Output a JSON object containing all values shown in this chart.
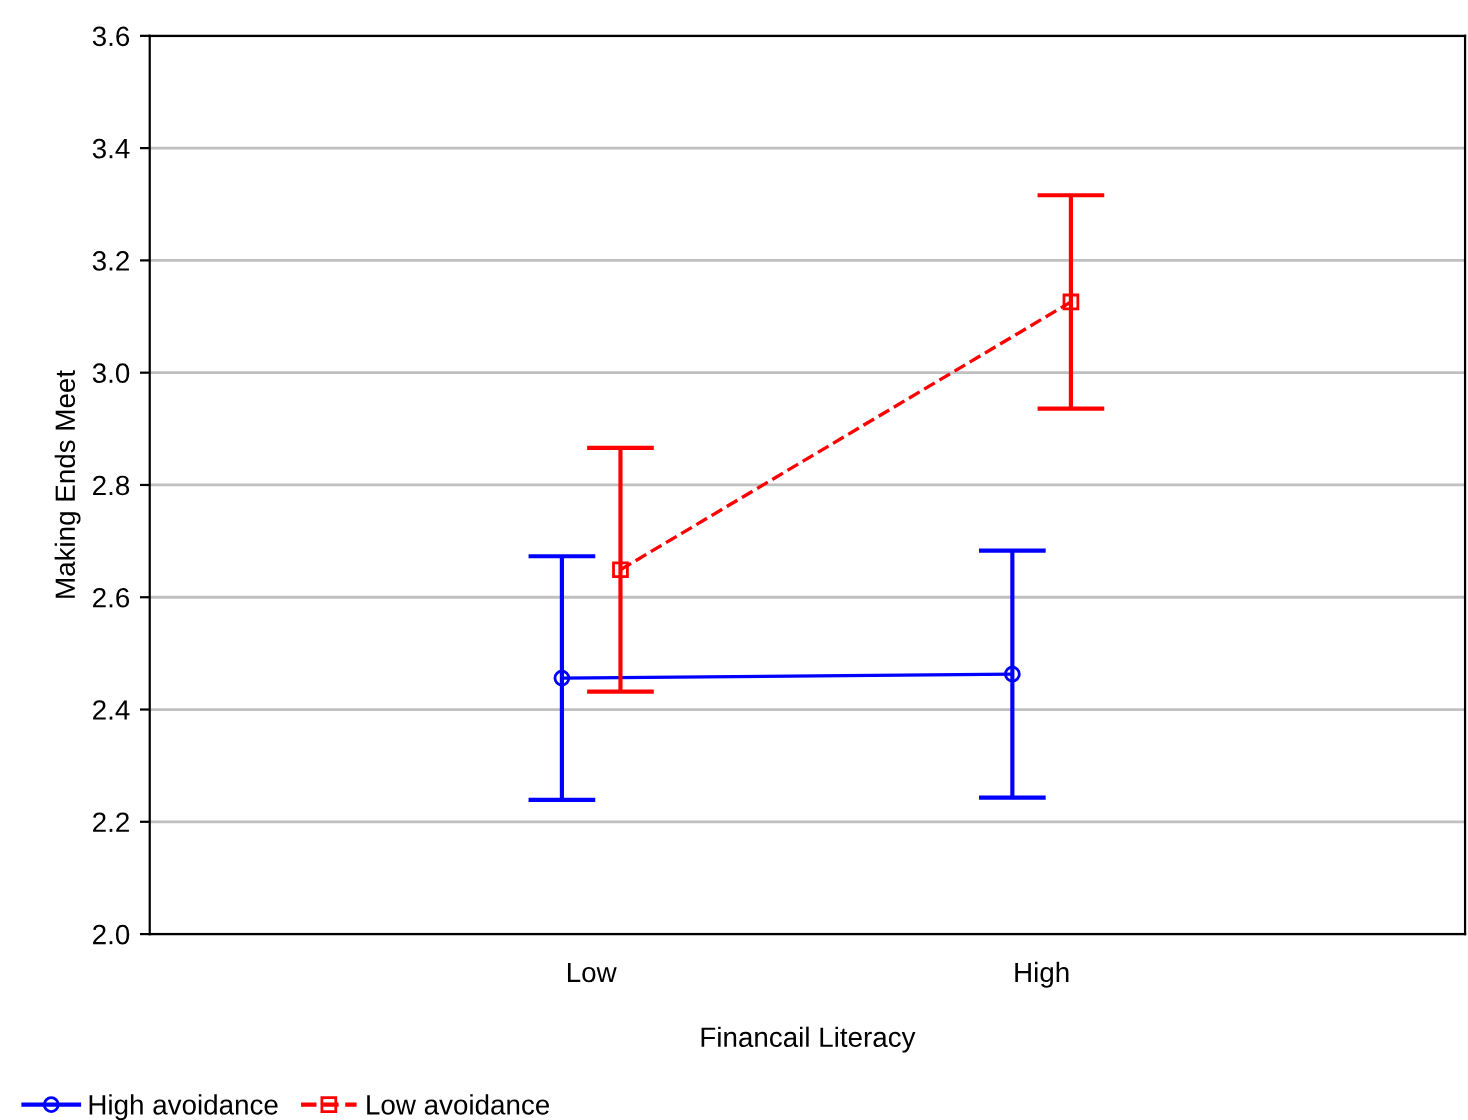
{
  "chart_data": {
    "type": "line",
    "xlabel": "Financail Literacy",
    "ylabel": "Making Ends Meet",
    "categories": [
      "Low",
      "High"
    ],
    "series": [
      {
        "name": "High avoidance",
        "color": "#0000ff",
        "values": [
          2.456,
          2.463
        ],
        "errors": [
          0.217,
          0.22
        ],
        "marker": "circle",
        "line_style": "solid"
      },
      {
        "name": "Low avoidance",
        "color": "#ff0000",
        "values": [
          2.649,
          3.126
        ],
        "errors": [
          0.217,
          0.19
        ],
        "marker": "square",
        "line_style": "dashed"
      }
    ],
    "ylim": [
      2.0,
      3.6
    ],
    "yticks": [
      {
        "value": 2.0,
        "label": "2.0"
      },
      {
        "value": 2.2,
        "label": "2.2"
      },
      {
        "value": 2.4,
        "label": "2.4"
      },
      {
        "value": 2.6,
        "label": "2.6"
      },
      {
        "value": 2.8,
        "label": "2.8"
      },
      {
        "value": 3.0,
        "label": "3.0"
      },
      {
        "value": 3.2,
        "label": "3.2"
      },
      {
        "value": 3.4,
        "label": "3.4"
      },
      {
        "value": 3.6,
        "label": "3.6"
      }
    ],
    "grid": "y",
    "legend": "bottom left"
  }
}
